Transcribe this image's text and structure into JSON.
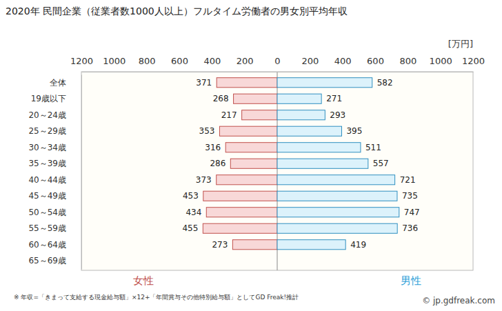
{
  "chart_data": [
    {
      "type": "bar",
      "orientation": "horizontal",
      "title": "2020年 民間企業（従業者数1000人以上）フルタイム労働者の男女別平均年収",
      "categories": [
        "全体",
        "19歳以下",
        "20～24歳",
        "25～29歳",
        "30～34歳",
        "35～39歳",
        "40～44歳",
        "45～49歳",
        "50～54歳",
        "55～59歳",
        "60～64歳",
        "65～69歳"
      ],
      "series": [
        {
          "name": "女性",
          "color": "#f8d8d8",
          "values": [
            371,
            268,
            217,
            353,
            316,
            286,
            373,
            453,
            434,
            455,
            273,
            null
          ]
        }
      ],
      "xlim": [
        1200,
        0
      ],
      "xticks": [
        1200,
        1000,
        800,
        600,
        400,
        200
      ],
      "data_labels": true,
      "grid": false,
      "footnote": "※ 年収=「きまって支給する現金給与額」×12+「年間賞与その他特別給与額」としてGD Freak!推計"
    },
    {
      "type": "bar",
      "orientation": "horizontal",
      "categories": [
        "全体",
        "19歳以下",
        "20～24歳",
        "25～29歳",
        "30～34歳",
        "35～39歳",
        "40～44歳",
        "45～49歳",
        "50～54歳",
        "55～59歳",
        "60～64歳",
        "65～69歳"
      ],
      "series": [
        {
          "name": "男性",
          "color": "#dcf2fb",
          "values": [
            582,
            271,
            293,
            395,
            511,
            557,
            721,
            735,
            747,
            736,
            419,
            null
          ]
        }
      ],
      "xlim": [
        0,
        1200
      ],
      "xticks": [
        0,
        200,
        400,
        600,
        800,
        1000,
        1200
      ],
      "xlabel": "[万円]",
      "tick_labels": "x",
      "data_labels": true,
      "grid": false,
      "source": "© jp.gdfreak.com"
    }
  ]
}
